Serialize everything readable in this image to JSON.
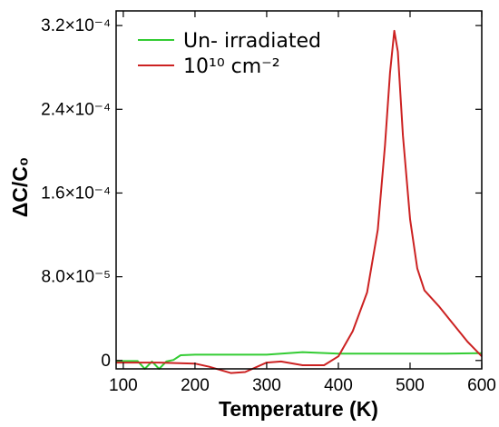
{
  "chart_data": {
    "type": "line",
    "xlabel": "Temperature (K)",
    "ylabel": "ΔC/C₀",
    "xlim": [
      90,
      600
    ],
    "ylim": [
      -8e-06,
      0.000334
    ],
    "x_ticks": [
      {
        "value": 100,
        "label": "100"
      },
      {
        "value": 200,
        "label": "200"
      },
      {
        "value": 300,
        "label": "300"
      },
      {
        "value": 400,
        "label": "400"
      },
      {
        "value": 500,
        "label": "500"
      },
      {
        "value": 600,
        "label": "600"
      }
    ],
    "y_ticks": [
      {
        "value": 0,
        "label": "0"
      },
      {
        "value": 8e-05,
        "label": "8.0×10⁻⁵"
      },
      {
        "value": 0.00016,
        "label": "1.6×10⁻⁴"
      },
      {
        "value": 0.00024,
        "label": "2.4×10⁻⁴"
      },
      {
        "value": 0.00032,
        "label": "3.2×10⁻⁴"
      }
    ],
    "grid": false,
    "legend_position": "top-left",
    "series": [
      {
        "name": "Un- irradiated",
        "color": "#33cc33",
        "x": [
          90,
          120,
          130,
          140,
          150,
          160,
          170,
          180,
          200,
          250,
          300,
          350,
          400,
          450,
          500,
          550,
          600
        ],
        "y": [
          -5e-07,
          -5e-07,
          -8e-06,
          -1e-06,
          -8e-06,
          -1e-06,
          5e-07,
          5e-06,
          5.5e-06,
          5.5e-06,
          5.5e-06,
          8e-06,
          6.5e-06,
          6.5e-06,
          6.5e-06,
          6.5e-06,
          7e-06
        ]
      },
      {
        "name": "10¹⁰ cm⁻²",
        "color": "#cc2222",
        "x": [
          90,
          150,
          200,
          220,
          250,
          270,
          300,
          320,
          350,
          380,
          400,
          420,
          440,
          455,
          465,
          472,
          478,
          483,
          490,
          500,
          510,
          520,
          540,
          560,
          580,
          600
        ],
        "y": [
          -2e-06,
          -2e-06,
          -3e-06,
          -6e-06,
          -1.2e-05,
          -1.1e-05,
          -2e-06,
          -1e-06,
          -4.5e-06,
          -4.5e-06,
          4e-06,
          2.8e-05,
          6.5e-05,
          0.000125,
          0.000205,
          0.000275,
          0.000315,
          0.000295,
          0.000215,
          0.000135,
          8.8e-05,
          6.7e-05,
          5.2e-05,
          3.5e-05,
          1.8e-05,
          4e-06
        ]
      }
    ]
  }
}
